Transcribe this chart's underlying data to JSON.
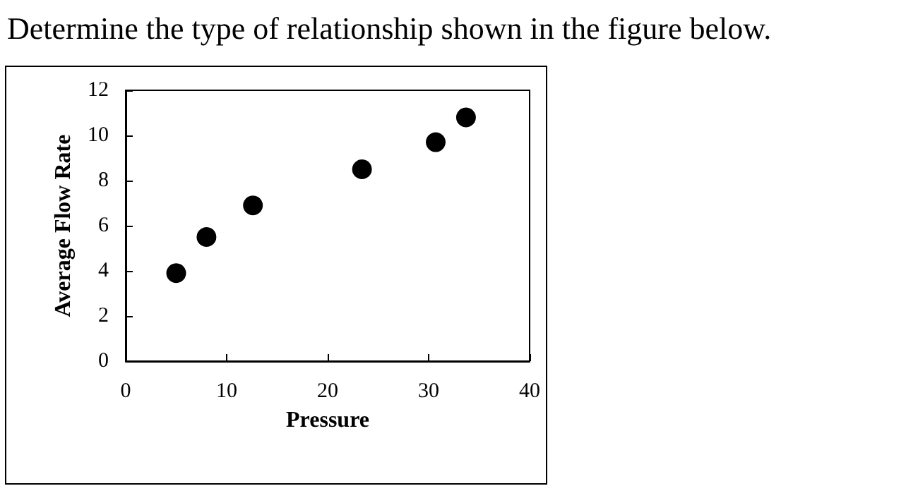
{
  "chart_data": {
    "type": "scatter",
    "title": "Determine the type of relationship shown in the figure below.",
    "xlabel": "Pressure",
    "ylabel": "Average Flow Rate",
    "x": [
      5.0,
      8.0,
      12.6,
      23.4,
      30.7,
      33.7
    ],
    "series": [
      {
        "color": "#000000",
        "values": [
          3.9,
          5.5,
          6.9,
          8.5,
          9.7,
          10.8
        ]
      }
    ],
    "xlim": [
      0,
      40
    ],
    "xticks": [
      0,
      10,
      20,
      30,
      40
    ],
    "ylim": [
      0,
      12
    ],
    "yticks": [
      0,
      2,
      4,
      6,
      8,
      10,
      12
    ],
    "grid": false,
    "marker": "circle"
  }
}
